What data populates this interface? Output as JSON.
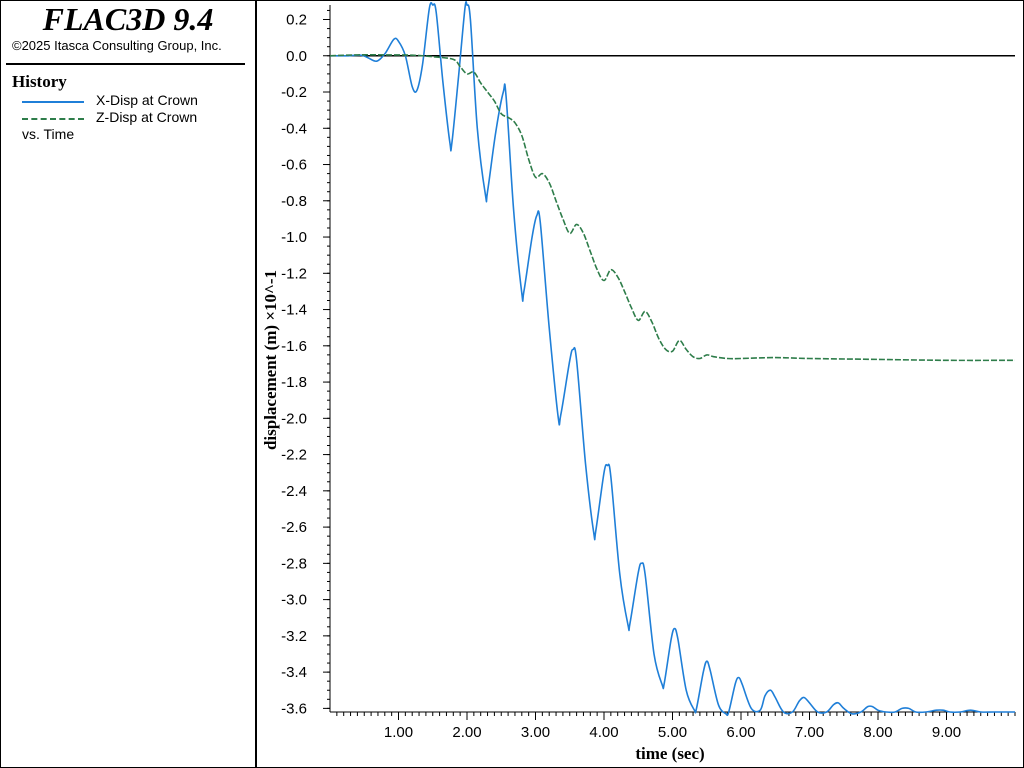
{
  "app": {
    "title": "FLAC3D 9.4",
    "copyright": "©2025 Itasca Consulting Group, Inc."
  },
  "legend": {
    "heading": "History",
    "items": [
      {
        "label": "X-Disp at Crown",
        "color": "#1f7fd8",
        "style": "solid"
      },
      {
        "label": "Z-Disp at Crown",
        "color": "#2e7d4a",
        "style": "dashed"
      }
    ],
    "vs_label": "vs. Time"
  },
  "chart_data": {
    "type": "line",
    "xlabel": "time (sec)",
    "ylabel": "displacement (m) ×10^-1",
    "xlim": [
      0,
      10
    ],
    "ylim": [
      -3.62,
      0.28
    ],
    "x_ticks": [
      "1.00",
      "2.00",
      "3.00",
      "4.00",
      "5.00",
      "6.00",
      "7.00",
      "8.00",
      "9.00"
    ],
    "y_ticks": [
      "0.2",
      "0.0",
      "-0.2",
      "-0.4",
      "-0.6",
      "-0.8",
      "-1.0",
      "-1.2",
      "-1.4",
      "-1.6",
      "-1.8",
      "-2.0",
      "-2.2",
      "-2.4",
      "-2.6",
      "-2.8",
      "-3.0",
      "-3.2",
      "-3.4",
      "-3.6"
    ],
    "zero_line": true,
    "series": [
      {
        "name": "X-Disp at Crown",
        "color": "#1f7fd8",
        "style": "solid",
        "points": [
          [
            0,
            0
          ],
          [
            0.25,
            0
          ],
          [
            0.45,
            0.003
          ],
          [
            0.55,
            -0.01
          ],
          [
            0.68,
            -0.03
          ],
          [
            0.8,
            0.01
          ],
          [
            0.93,
            0.09
          ],
          [
            1.0,
            0.08
          ],
          [
            1.1,
            0.0
          ],
          [
            1.2,
            -0.17
          ],
          [
            1.27,
            -0.19
          ],
          [
            1.35,
            -0.05
          ],
          [
            1.45,
            0.26
          ],
          [
            1.5,
            0.28
          ],
          [
            1.55,
            0.24
          ],
          [
            1.65,
            -0.15
          ],
          [
            1.75,
            -0.48
          ],
          [
            1.78,
            -0.48
          ],
          [
            1.88,
            -0.1
          ],
          [
            1.97,
            0.26
          ],
          [
            2.0,
            0.28
          ],
          [
            2.05,
            0.2
          ],
          [
            2.15,
            -0.4
          ],
          [
            2.27,
            -0.77
          ],
          [
            2.3,
            -0.75
          ],
          [
            2.42,
            -0.42
          ],
          [
            2.53,
            -0.2
          ],
          [
            2.57,
            -0.22
          ],
          [
            2.68,
            -0.85
          ],
          [
            2.8,
            -1.31
          ],
          [
            2.83,
            -1.3
          ],
          [
            2.95,
            -1.0
          ],
          [
            3.02,
            -0.88
          ],
          [
            3.07,
            -0.92
          ],
          [
            3.2,
            -1.5
          ],
          [
            3.33,
            -1.99
          ],
          [
            3.37,
            -1.98
          ],
          [
            3.5,
            -1.68
          ],
          [
            3.55,
            -1.62
          ],
          [
            3.6,
            -1.68
          ],
          [
            3.73,
            -2.25
          ],
          [
            3.85,
            -2.63
          ],
          [
            3.88,
            -2.62
          ],
          [
            4.0,
            -2.3
          ],
          [
            4.05,
            -2.26
          ],
          [
            4.1,
            -2.32
          ],
          [
            4.23,
            -2.86
          ],
          [
            4.35,
            -3.14
          ],
          [
            4.38,
            -3.13
          ],
          [
            4.5,
            -2.85
          ],
          [
            4.55,
            -2.8
          ],
          [
            4.6,
            -2.86
          ],
          [
            4.73,
            -3.3
          ],
          [
            4.85,
            -3.47
          ],
          [
            4.88,
            -3.46
          ],
          [
            4.98,
            -3.22
          ],
          [
            5.03,
            -3.16
          ],
          [
            5.08,
            -3.22
          ],
          [
            5.2,
            -3.5
          ],
          [
            5.32,
            -3.61
          ],
          [
            5.35,
            -3.6
          ],
          [
            5.45,
            -3.4
          ],
          [
            5.5,
            -3.34
          ],
          [
            5.55,
            -3.39
          ],
          [
            5.67,
            -3.58
          ],
          [
            5.78,
            -3.63
          ],
          [
            5.82,
            -3.62
          ],
          [
            5.92,
            -3.46
          ],
          [
            5.97,
            -3.43
          ],
          [
            6.02,
            -3.47
          ],
          [
            6.15,
            -3.6
          ],
          [
            6.28,
            -3.61
          ],
          [
            6.35,
            -3.53
          ],
          [
            6.43,
            -3.5
          ],
          [
            6.5,
            -3.54
          ],
          [
            6.62,
            -3.62
          ],
          [
            6.75,
            -3.62
          ],
          [
            6.85,
            -3.56
          ],
          [
            6.92,
            -3.54
          ],
          [
            7.0,
            -3.57
          ],
          [
            7.12,
            -3.62
          ],
          [
            7.25,
            -3.62
          ],
          [
            7.35,
            -3.58
          ],
          [
            7.42,
            -3.57
          ],
          [
            7.5,
            -3.6
          ],
          [
            7.62,
            -3.63
          ],
          [
            7.75,
            -3.62
          ],
          [
            7.85,
            -3.59
          ],
          [
            7.92,
            -3.59
          ],
          [
            8.0,
            -3.61
          ],
          [
            8.12,
            -3.62
          ],
          [
            8.25,
            -3.62
          ],
          [
            8.35,
            -3.6
          ],
          [
            8.45,
            -3.6
          ],
          [
            8.55,
            -3.62
          ],
          [
            8.7,
            -3.62
          ],
          [
            8.85,
            -3.61
          ],
          [
            8.95,
            -3.61
          ],
          [
            9.05,
            -3.62
          ],
          [
            9.2,
            -3.62
          ],
          [
            9.35,
            -3.61
          ],
          [
            9.5,
            -3.62
          ],
          [
            9.7,
            -3.62
          ],
          [
            10.0,
            -3.62
          ]
        ]
      },
      {
        "name": "Z-Disp at Crown",
        "color": "#2e7d4a",
        "style": "dashed",
        "points": [
          [
            0,
            0
          ],
          [
            0.4,
            0.005
          ],
          [
            0.8,
            0.005
          ],
          [
            1.2,
            0.003
          ],
          [
            1.5,
            -0.005
          ],
          [
            1.8,
            -0.02
          ],
          [
            1.9,
            -0.06
          ],
          [
            2.0,
            -0.1
          ],
          [
            2.1,
            -0.09
          ],
          [
            2.2,
            -0.15
          ],
          [
            2.3,
            -0.2
          ],
          [
            2.4,
            -0.25
          ],
          [
            2.5,
            -0.32
          ],
          [
            2.6,
            -0.34
          ],
          [
            2.7,
            -0.37
          ],
          [
            2.8,
            -0.44
          ],
          [
            2.9,
            -0.57
          ],
          [
            3.0,
            -0.67
          ],
          [
            3.1,
            -0.65
          ],
          [
            3.2,
            -0.7
          ],
          [
            3.3,
            -0.8
          ],
          [
            3.4,
            -0.9
          ],
          [
            3.5,
            -0.98
          ],
          [
            3.6,
            -0.93
          ],
          [
            3.7,
            -0.98
          ],
          [
            3.8,
            -1.08
          ],
          [
            3.9,
            -1.18
          ],
          [
            4.0,
            -1.24
          ],
          [
            4.1,
            -1.18
          ],
          [
            4.2,
            -1.22
          ],
          [
            4.3,
            -1.3
          ],
          [
            4.4,
            -1.39
          ],
          [
            4.5,
            -1.46
          ],
          [
            4.6,
            -1.41
          ],
          [
            4.7,
            -1.47
          ],
          [
            4.8,
            -1.56
          ],
          [
            4.9,
            -1.62
          ],
          [
            5.0,
            -1.63
          ],
          [
            5.1,
            -1.57
          ],
          [
            5.2,
            -1.62
          ],
          [
            5.3,
            -1.66
          ],
          [
            5.4,
            -1.67
          ],
          [
            5.5,
            -1.65
          ],
          [
            5.6,
            -1.66
          ],
          [
            5.8,
            -1.67
          ],
          [
            6.0,
            -1.67
          ],
          [
            6.5,
            -1.665
          ],
          [
            7.0,
            -1.67
          ],
          [
            8.0,
            -1.675
          ],
          [
            9.0,
            -1.68
          ],
          [
            10.0,
            -1.68
          ]
        ]
      }
    ]
  }
}
